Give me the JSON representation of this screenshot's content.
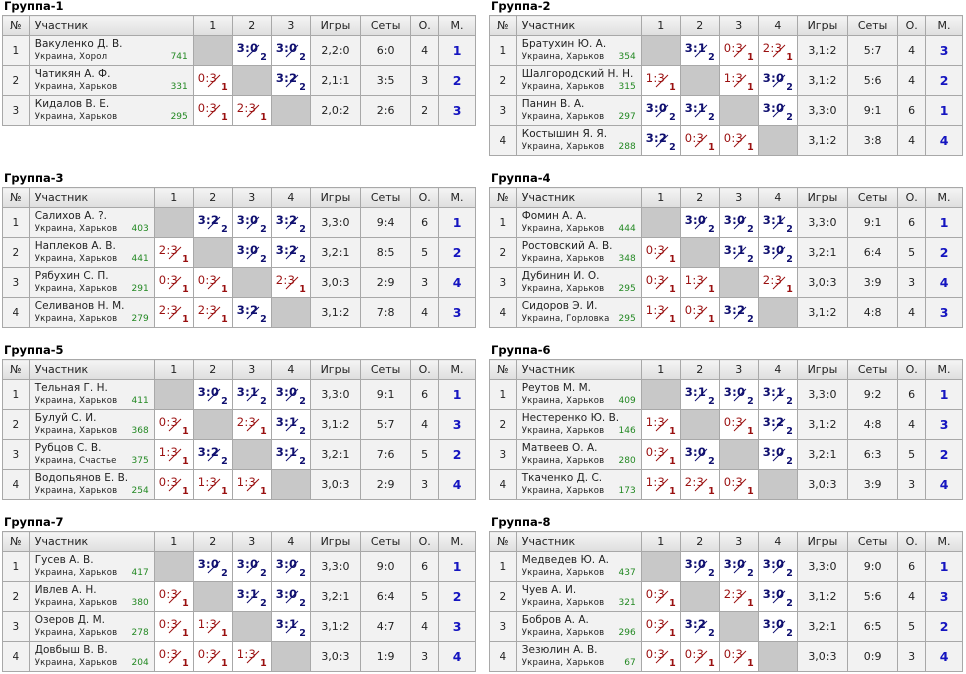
{
  "headers": {
    "no": "№",
    "player": "Участник",
    "games": "Игры",
    "sets": "Сеты",
    "points": "О.",
    "place": "М."
  },
  "groups": [
    {
      "title": "Группа-1",
      "n": 3,
      "rows": [
        {
          "no": "1",
          "name": "Вакуленко Д. В.",
          "city": "Украина, Хорол",
          "rating": "741",
          "scores": [
            "",
            "3:0",
            "3:0"
          ],
          "games": "2,2:0",
          "sets": "6:0",
          "points": "4",
          "place": "1"
        },
        {
          "no": "2",
          "name": "Чатикян А. Ф.",
          "city": "Украина, Харьков",
          "rating": "331",
          "scores": [
            "0:3",
            "",
            "3:2"
          ],
          "games": "2,1:1",
          "sets": "3:5",
          "points": "3",
          "place": "2"
        },
        {
          "no": "3",
          "name": "Кидалов В. Е.",
          "city": "Украина, Харьков",
          "rating": "295",
          "scores": [
            "0:3",
            "2:3",
            ""
          ],
          "games": "2,0:2",
          "sets": "2:6",
          "points": "2",
          "place": "3"
        }
      ]
    },
    {
      "title": "Группа-2",
      "n": 4,
      "rows": [
        {
          "no": "1",
          "name": "Братухин Ю. А.",
          "city": "Украина, Харьков",
          "rating": "354",
          "scores": [
            "",
            "3:1",
            "0:3",
            "2:3"
          ],
          "games": "3,1:2",
          "sets": "5:7",
          "points": "4",
          "place": "3"
        },
        {
          "no": "2",
          "name": "Шалгородский Н. Н.",
          "city": "Украина, Харьков",
          "rating": "315",
          "scores": [
            "1:3",
            "",
            "1:3",
            "3:0"
          ],
          "games": "3,1:2",
          "sets": "5:6",
          "points": "4",
          "place": "2"
        },
        {
          "no": "3",
          "name": "Панин В. А.",
          "city": "Украина, Харьков",
          "rating": "297",
          "scores": [
            "3:0",
            "3:1",
            "",
            "3:0"
          ],
          "games": "3,3:0",
          "sets": "9:1",
          "points": "6",
          "place": "1"
        },
        {
          "no": "4",
          "name": "Костышин Я. Я.",
          "city": "Украина, Харьков",
          "rating": "288",
          "scores": [
            "3:2",
            "0:3",
            "0:3",
            ""
          ],
          "games": "3,1:2",
          "sets": "3:8",
          "points": "4",
          "place": "4"
        }
      ]
    },
    {
      "title": "Группа-3",
      "n": 4,
      "rows": [
        {
          "no": "1",
          "name": "Салихов А. ?.",
          "city": "Украина, Харьков",
          "rating": "403",
          "scores": [
            "",
            "3:2",
            "3:0",
            "3:2"
          ],
          "games": "3,3:0",
          "sets": "9:4",
          "points": "6",
          "place": "1"
        },
        {
          "no": "2",
          "name": "Наплеков А. В.",
          "city": "Украина, Харьков",
          "rating": "441",
          "scores": [
            "2:3",
            "",
            "3:0",
            "3:2"
          ],
          "games": "3,2:1",
          "sets": "8:5",
          "points": "5",
          "place": "2"
        },
        {
          "no": "3",
          "name": "Рябухин С. П.",
          "city": "Украина, Харьков",
          "rating": "291",
          "scores": [
            "0:3",
            "0:3",
            "",
            "2:3"
          ],
          "games": "3,0:3",
          "sets": "2:9",
          "points": "3",
          "place": "4"
        },
        {
          "no": "4",
          "name": "Селиванов Н. М.",
          "city": "Украина, Харьков",
          "rating": "279",
          "scores": [
            "2:3",
            "2:3",
            "3:2",
            ""
          ],
          "games": "3,1:2",
          "sets": "7:8",
          "points": "4",
          "place": "3"
        }
      ]
    },
    {
      "title": "Группа-4",
      "n": 4,
      "rows": [
        {
          "no": "1",
          "name": "Фомин А. А.",
          "city": "Украина, Харьков",
          "rating": "444",
          "scores": [
            "",
            "3:0",
            "3:0",
            "3:1"
          ],
          "games": "3,3:0",
          "sets": "9:1",
          "points": "6",
          "place": "1"
        },
        {
          "no": "2",
          "name": "Ростовский А. В.",
          "city": "Украина, Харьков",
          "rating": "348",
          "scores": [
            "0:3",
            "",
            "3:1",
            "3:0"
          ],
          "games": "3,2:1",
          "sets": "6:4",
          "points": "5",
          "place": "2"
        },
        {
          "no": "3",
          "name": "Дубинин И. О.",
          "city": "Украина, Харьков",
          "rating": "295",
          "scores": [
            "0:3",
            "1:3",
            "",
            "2:3"
          ],
          "games": "3,0:3",
          "sets": "3:9",
          "points": "3",
          "place": "4"
        },
        {
          "no": "4",
          "name": "Сидоров Э. И.",
          "city": "Украина, Горловка",
          "rating": "295",
          "scores": [
            "1:3",
            "0:3",
            "3:2",
            ""
          ],
          "games": "3,1:2",
          "sets": "4:8",
          "points": "4",
          "place": "3"
        }
      ]
    },
    {
      "title": "Группа-5",
      "n": 4,
      "rows": [
        {
          "no": "1",
          "name": "Тельная Г. Н.",
          "city": "Украина, Харьков",
          "rating": "411",
          "scores": [
            "",
            "3:0",
            "3:1",
            "3:0"
          ],
          "games": "3,3:0",
          "sets": "9:1",
          "points": "6",
          "place": "1"
        },
        {
          "no": "2",
          "name": "Булуй С. И.",
          "city": "Украина, Харьков",
          "rating": "368",
          "scores": [
            "0:3",
            "",
            "2:3",
            "3:1"
          ],
          "games": "3,1:2",
          "sets": "5:7",
          "points": "4",
          "place": "3"
        },
        {
          "no": "3",
          "name": "Рубцов С. В.",
          "city": "Украина, Счастье",
          "rating": "375",
          "scores": [
            "1:3",
            "3:2",
            "",
            "3:1"
          ],
          "games": "3,2:1",
          "sets": "7:6",
          "points": "5",
          "place": "2"
        },
        {
          "no": "4",
          "name": "Водопьянов Е. В.",
          "city": "Украина, Харьков",
          "rating": "254",
          "scores": [
            "0:3",
            "1:3",
            "1:3",
            ""
          ],
          "games": "3,0:3",
          "sets": "2:9",
          "points": "3",
          "place": "4"
        }
      ]
    },
    {
      "title": "Группа-6",
      "n": 4,
      "rows": [
        {
          "no": "1",
          "name": "Реутов М. М.",
          "city": "Украина, Харьков",
          "rating": "409",
          "scores": [
            "",
            "3:1",
            "3:0",
            "3:1"
          ],
          "games": "3,3:0",
          "sets": "9:2",
          "points": "6",
          "place": "1"
        },
        {
          "no": "2",
          "name": "Нестеренко Ю. В.",
          "city": "Украина, Харьков",
          "rating": "146",
          "scores": [
            "1:3",
            "",
            "0:3",
            "3:2"
          ],
          "games": "3,1:2",
          "sets": "4:8",
          "points": "4",
          "place": "3"
        },
        {
          "no": "3",
          "name": "Матвеев О. А.",
          "city": "Украина, Харьков",
          "rating": "280",
          "scores": [
            "0:3",
            "3:0",
            "",
            "3:0"
          ],
          "games": "3,2:1",
          "sets": "6:3",
          "points": "5",
          "place": "2"
        },
        {
          "no": "4",
          "name": "Ткаченко Д. С.",
          "city": "Украина, Харьков",
          "rating": "173",
          "scores": [
            "1:3",
            "2:3",
            "0:3",
            ""
          ],
          "games": "3,0:3",
          "sets": "3:9",
          "points": "3",
          "place": "4"
        }
      ]
    },
    {
      "title": "Группа-7",
      "n": 4,
      "rows": [
        {
          "no": "1",
          "name": "Гусев А. В.",
          "city": "Украина, Харьков",
          "rating": "417",
          "scores": [
            "",
            "3:0",
            "3:0",
            "3:0"
          ],
          "games": "3,3:0",
          "sets": "9:0",
          "points": "6",
          "place": "1"
        },
        {
          "no": "2",
          "name": "Ивлев А. Н.",
          "city": "Украина, Харьков",
          "rating": "380",
          "scores": [
            "0:3",
            "",
            "3:1",
            "3:0"
          ],
          "games": "3,2:1",
          "sets": "6:4",
          "points": "5",
          "place": "2"
        },
        {
          "no": "3",
          "name": "Озеров Д. М.",
          "city": "Украина, Харьков",
          "rating": "278",
          "scores": [
            "0:3",
            "1:3",
            "",
            "3:1"
          ],
          "games": "3,1:2",
          "sets": "4:7",
          "points": "4",
          "place": "3"
        },
        {
          "no": "4",
          "name": "Довбыш В. В.",
          "city": "Украина, Харьков",
          "rating": "204",
          "scores": [
            "0:3",
            "0:3",
            "1:3",
            ""
          ],
          "games": "3,0:3",
          "sets": "1:9",
          "points": "3",
          "place": "4"
        }
      ]
    },
    {
      "title": "Группа-8",
      "n": 4,
      "rows": [
        {
          "no": "1",
          "name": "Медведев Ю. А.",
          "city": "Украина, Харьков",
          "rating": "437",
          "scores": [
            "",
            "3:0",
            "3:0",
            "3:0"
          ],
          "games": "3,3:0",
          "sets": "9:0",
          "points": "6",
          "place": "1"
        },
        {
          "no": "2",
          "name": "Чуев А. И.",
          "city": "Украина, Харьков",
          "rating": "321",
          "scores": [
            "0:3",
            "",
            "2:3",
            "3:0"
          ],
          "games": "3,1:2",
          "sets": "5:6",
          "points": "4",
          "place": "3"
        },
        {
          "no": "3",
          "name": "Бобров А. А.",
          "city": "Украина, Харьков",
          "rating": "296",
          "scores": [
            "0:3",
            "3:2",
            "",
            "3:0"
          ],
          "games": "3,2:1",
          "sets": "6:5",
          "points": "5",
          "place": "2"
        },
        {
          "no": "4",
          "name": "Зезюлин А. В.",
          "city": "Украина, Харьков",
          "rating": "67",
          "scores": [
            "0:3",
            "0:3",
            "0:3",
            ""
          ],
          "games": "3,0:3",
          "sets": "0:9",
          "points": "3",
          "place": "4"
        }
      ]
    }
  ]
}
